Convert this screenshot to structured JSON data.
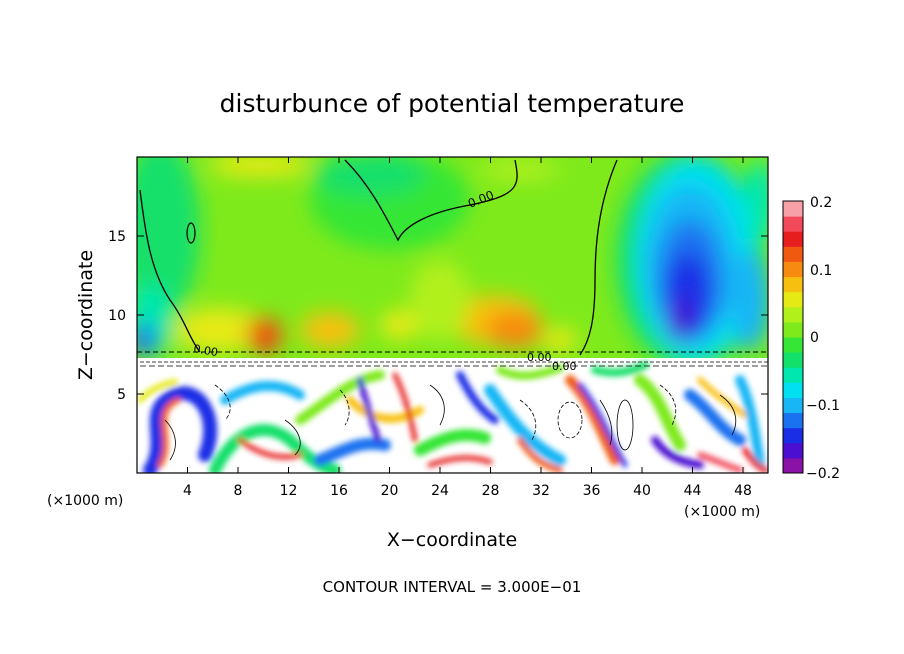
{
  "chart_data": {
    "type": "heatmap",
    "title": "disturbunce of potential temperature",
    "xlabel": "X−coordinate",
    "ylabel": "Z−coordinate",
    "x_unit_left": "(×1000 m)",
    "x_unit_right": "(×1000 m)",
    "x_ticks": [
      "4",
      "8",
      "12",
      "16",
      "20",
      "24",
      "28",
      "32",
      "36",
      "40",
      "44",
      "48"
    ],
    "y_ticks": [
      "5",
      "10",
      "15"
    ],
    "xlim": [
      0,
      50
    ],
    "ylim": [
      0,
      20
    ],
    "colorbar": {
      "ticks": [
        "0.2",
        "0.1",
        "0",
        "−0.1",
        "−0.2"
      ],
      "range": [
        -0.2,
        0.2
      ]
    },
    "contour_labels": [
      "0.00",
      "0.00",
      "0.00",
      "0.00"
    ],
    "footer": "CONTOUR INTERVAL = 3.000E−01"
  },
  "colors": {
    "levels": [
      "#8a12a6",
      "#4a0fd0",
      "#1a2ee6",
      "#1a72f0",
      "#19b6f5",
      "#00e0f0",
      "#00e8b0",
      "#12e06a",
      "#36e636",
      "#7eea1c",
      "#b2f01c",
      "#e6ea14",
      "#f7c010",
      "#f78a10",
      "#f05a10",
      "#e61e1e",
      "#f24a5a",
      "#f7a0a8"
    ]
  }
}
